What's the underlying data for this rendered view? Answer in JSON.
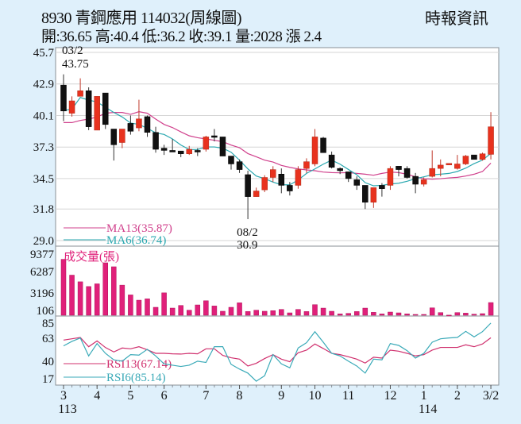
{
  "header": {
    "title": "8930  青鋼應用 114032(周線圖)",
    "stats": "開:36.65 高:40.4 低:36.2 收:39.1 量:2028 漲 2.4",
    "brand": "時報資訊"
  },
  "colors": {
    "up": "#e8321e",
    "down": "#111111",
    "ma13": "#d0408c",
    "ma6": "#2aa8b0",
    "volume": "#e0207a",
    "rsi13": "#d0306e",
    "rsi6": "#3aaab8",
    "background": "#dff0fb"
  },
  "chart_data": [
    {
      "type": "candlestick",
      "ylim": [
        29.0,
        45.7
      ],
      "yticks": [
        "45.7",
        "42.9",
        "40.1",
        "37.3",
        "34.5",
        "31.8",
        "29.0"
      ],
      "grid": true,
      "ohlc": [
        [
          42.8,
          40.5,
          43.75,
          39.6
        ],
        [
          40.3,
          41.4,
          41.8,
          40.0
        ],
        [
          41.8,
          42.3,
          43.4,
          41.8
        ],
        [
          42.3,
          39.1,
          42.6,
          38.8
        ],
        [
          38.8,
          41.8,
          41.8,
          38.8
        ],
        [
          42.1,
          39.3,
          42.1,
          38.9
        ],
        [
          38.9,
          37.5,
          38.9,
          36.1
        ],
        [
          37.7,
          38.9,
          38.9,
          37.2
        ],
        [
          39.4,
          38.7,
          40.1,
          38.4
        ],
        [
          39.0,
          39.8,
          41.5,
          38.7
        ],
        [
          40.0,
          38.6,
          40.1,
          38.2
        ],
        [
          38.6,
          37.1,
          39.1,
          36.8
        ],
        [
          37.2,
          37.0,
          37.5,
          36.6
        ],
        [
          37.0,
          36.9,
          38.0,
          36.9
        ],
        [
          36.95,
          36.7,
          36.95,
          36.4
        ],
        [
          36.7,
          37.1,
          37.4,
          36.6
        ],
        [
          37.0,
          36.9,
          37.2,
          36.5
        ],
        [
          37.1,
          38.2,
          38.3,
          36.9
        ],
        [
          38.3,
          38.2,
          38.9,
          37.8
        ],
        [
          38.2,
          36.5,
          38.2,
          36.5
        ],
        [
          36.5,
          35.8,
          36.5,
          35.3
        ],
        [
          36.0,
          35.3,
          36.2,
          35.0
        ],
        [
          34.85,
          32.9,
          35.2,
          30.9
        ],
        [
          32.9,
          33.4,
          33.7,
          32.9
        ],
        [
          33.5,
          34.6,
          34.8,
          33.3
        ],
        [
          34.6,
          35.3,
          35.6,
          34.2
        ],
        [
          34.9,
          33.9,
          35.4,
          33.2
        ],
        [
          33.9,
          33.4,
          34.2,
          33.0
        ],
        [
          33.9,
          35.3,
          35.6,
          33.6
        ],
        [
          35.4,
          36.0,
          36.3,
          35.0
        ],
        [
          35.8,
          38.2,
          38.9,
          35.6
        ],
        [
          38.1,
          36.8,
          38.2,
          36.8
        ],
        [
          36.6,
          35.5,
          36.9,
          35.4
        ],
        [
          35.4,
          35.2,
          35.5,
          34.9
        ],
        [
          35.1,
          34.5,
          35.1,
          34.2
        ],
        [
          34.4,
          33.9,
          34.7,
          33.5
        ],
        [
          33.9,
          32.4,
          33.9,
          31.8
        ],
        [
          32.4,
          33.7,
          33.7,
          31.9
        ],
        [
          33.9,
          33.6,
          34.1,
          32.9
        ],
        [
          33.9,
          35.4,
          35.6,
          33.5
        ],
        [
          35.6,
          35.3,
          35.6,
          34.7
        ],
        [
          35.4,
          34.6,
          35.6,
          34.5
        ],
        [
          34.7,
          34.0,
          35.0,
          33.2
        ],
        [
          34.0,
          34.4,
          34.6,
          33.8
        ],
        [
          34.7,
          35.4,
          37.0,
          34.6
        ],
        [
          35.4,
          35.7,
          36.2,
          34.7
        ],
        [
          35.8,
          35.85,
          35.85,
          35.75
        ],
        [
          35.4,
          35.8,
          36.6,
          35.3
        ],
        [
          35.8,
          36.5,
          36.6,
          35.7
        ],
        [
          36.6,
          36.2,
          36.6,
          36.2
        ],
        [
          36.2,
          36.7,
          36.8,
          36.1
        ],
        [
          36.65,
          39.1,
          40.4,
          36.2
        ]
      ],
      "ma13": [
        39.47,
        39.47,
        39.66,
        39.78,
        39.97,
        40.3,
        40.37,
        40.37,
        40.2,
        40.44,
        40.3,
        39.78,
        39.31,
        39.03,
        38.65,
        38.3,
        38.13,
        38.02,
        37.9,
        37.78,
        37.48,
        37.24,
        36.72,
        36.44,
        36.14,
        35.97,
        35.67,
        35.5,
        35.36,
        35.27,
        35.2,
        35.08,
        35.03,
        35.01,
        35.03,
        34.96,
        34.89,
        34.8,
        34.96,
        35.08,
        35.03,
        34.89,
        34.66,
        34.49,
        34.45,
        34.49,
        34.56,
        34.61,
        34.73,
        34.89,
        35.13,
        35.87
      ],
      "ma6": [
        40.53,
        40.67,
        41.7,
        41.47,
        41.3,
        40.83,
        40.37,
        39.97,
        39.43,
        39.31,
        38.96,
        38.56,
        38.42,
        38.02,
        37.48,
        37.08,
        37.08,
        37.31,
        37.31,
        37.2,
        36.84,
        36.14,
        35.36,
        34.73,
        34.49,
        34.19,
        33.95,
        33.95,
        34.37,
        34.96,
        35.36,
        35.78,
        36.14,
        35.78,
        35.31,
        34.84,
        34.14,
        33.86,
        33.9,
        34.02,
        34.09,
        34.26,
        34.49,
        34.66,
        34.84,
        34.89,
        34.96,
        35.13,
        35.43,
        35.83,
        36.14,
        36.74
      ],
      "legend": [
        {
          "label": "MA13(35.87)",
          "key": "ma13"
        },
        {
          "label": "MA6(36.74)",
          "key": "ma6"
        }
      ],
      "annotations": [
        {
          "date": "03/2",
          "value": "43.75",
          "index": 0
        },
        {
          "date": "08/2",
          "value": "30.9",
          "index": 22
        }
      ]
    },
    {
      "type": "bar",
      "title": "成交量(張)",
      "yticks": [
        "9377",
        "6287",
        "3196",
        "106"
      ],
      "ylim": [
        106,
        9377
      ],
      "values": [
        8590,
        6190,
        5180,
        4460,
        4870,
        8060,
        7460,
        4670,
        3190,
        2390,
        2590,
        1310,
        3500,
        1190,
        1590,
        870,
        1670,
        2300,
        1510,
        710,
        1310,
        1990,
        670,
        870,
        710,
        800,
        986,
        466,
        986,
        666,
        1706,
        1186,
        706,
        306,
        386,
        666,
        1186,
        546,
        306,
        586,
        466,
        306,
        226,
        226,
        1226,
        506,
        120,
        506,
        426,
        266,
        346,
        2028
      ]
    },
    {
      "type": "line",
      "yticks": [
        "85",
        "63",
        "40",
        "17"
      ],
      "ylim": [
        17,
        85
      ],
      "series": [
        {
          "name": "RSI13(67.14)",
          "key": "rsi13",
          "values": [
            64.3,
            65.9,
            67.5,
            56.2,
            63.3,
            55.2,
            49.8,
            54.6,
            53.6,
            56.2,
            52.4,
            48.1,
            48.1,
            47.5,
            47.2,
            48.1,
            47.5,
            53.6,
            53.6,
            45.6,
            42.7,
            41.0,
            32.6,
            35.9,
            41.7,
            46.5,
            41.0,
            37.8,
            48.8,
            52.0,
            59.5,
            54.0,
            48.1,
            46.5,
            43.9,
            41.0,
            36.2,
            43.3,
            42.3,
            52.0,
            50.7,
            48.1,
            44.9,
            46.5,
            52.0,
            55.3,
            55.3,
            55.3,
            58.5,
            56.2,
            59.5,
            67.14
          ]
        },
        {
          "name": "RSI6(85.14)",
          "key": "rsi6",
          "values": [
            57.2,
            62.7,
            66.9,
            44.9,
            60.1,
            48.1,
            40.1,
            38.5,
            46.5,
            45.9,
            53.0,
            44.9,
            35.2,
            33.6,
            32.0,
            33.6,
            38.5,
            36.9,
            56.2,
            56.2,
            34.6,
            28.8,
            23.9,
            14.0,
            20.7,
            46.5,
            35.2,
            30.4,
            54.6,
            61.1,
            74.6,
            61.7,
            48.1,
            44.9,
            38.5,
            32.6,
            23.9,
            41.0,
            40.1,
            60.1,
            57.8,
            51.4,
            42.3,
            48.1,
            61.7,
            65.9,
            66.9,
            67.5,
            75.0,
            68.2,
            74.6,
            85.14
          ]
        }
      ],
      "xticks": [
        {
          "label": "3",
          "sub": "113",
          "index": 0
        },
        {
          "label": "4",
          "index": 4
        },
        {
          "label": "5",
          "index": 8
        },
        {
          "label": "6",
          "index": 12
        },
        {
          "label": "7",
          "index": 17
        },
        {
          "label": "8",
          "index": 21
        },
        {
          "label": "9",
          "index": 26
        },
        {
          "label": "10",
          "index": 30
        },
        {
          "label": "11",
          "index": 34
        },
        {
          "label": "12",
          "index": 39
        },
        {
          "label": "1",
          "sub": "114",
          "index": 43
        },
        {
          "label": "2",
          "index": 47
        },
        {
          "label": "3/2",
          "index": 51
        }
      ]
    }
  ]
}
